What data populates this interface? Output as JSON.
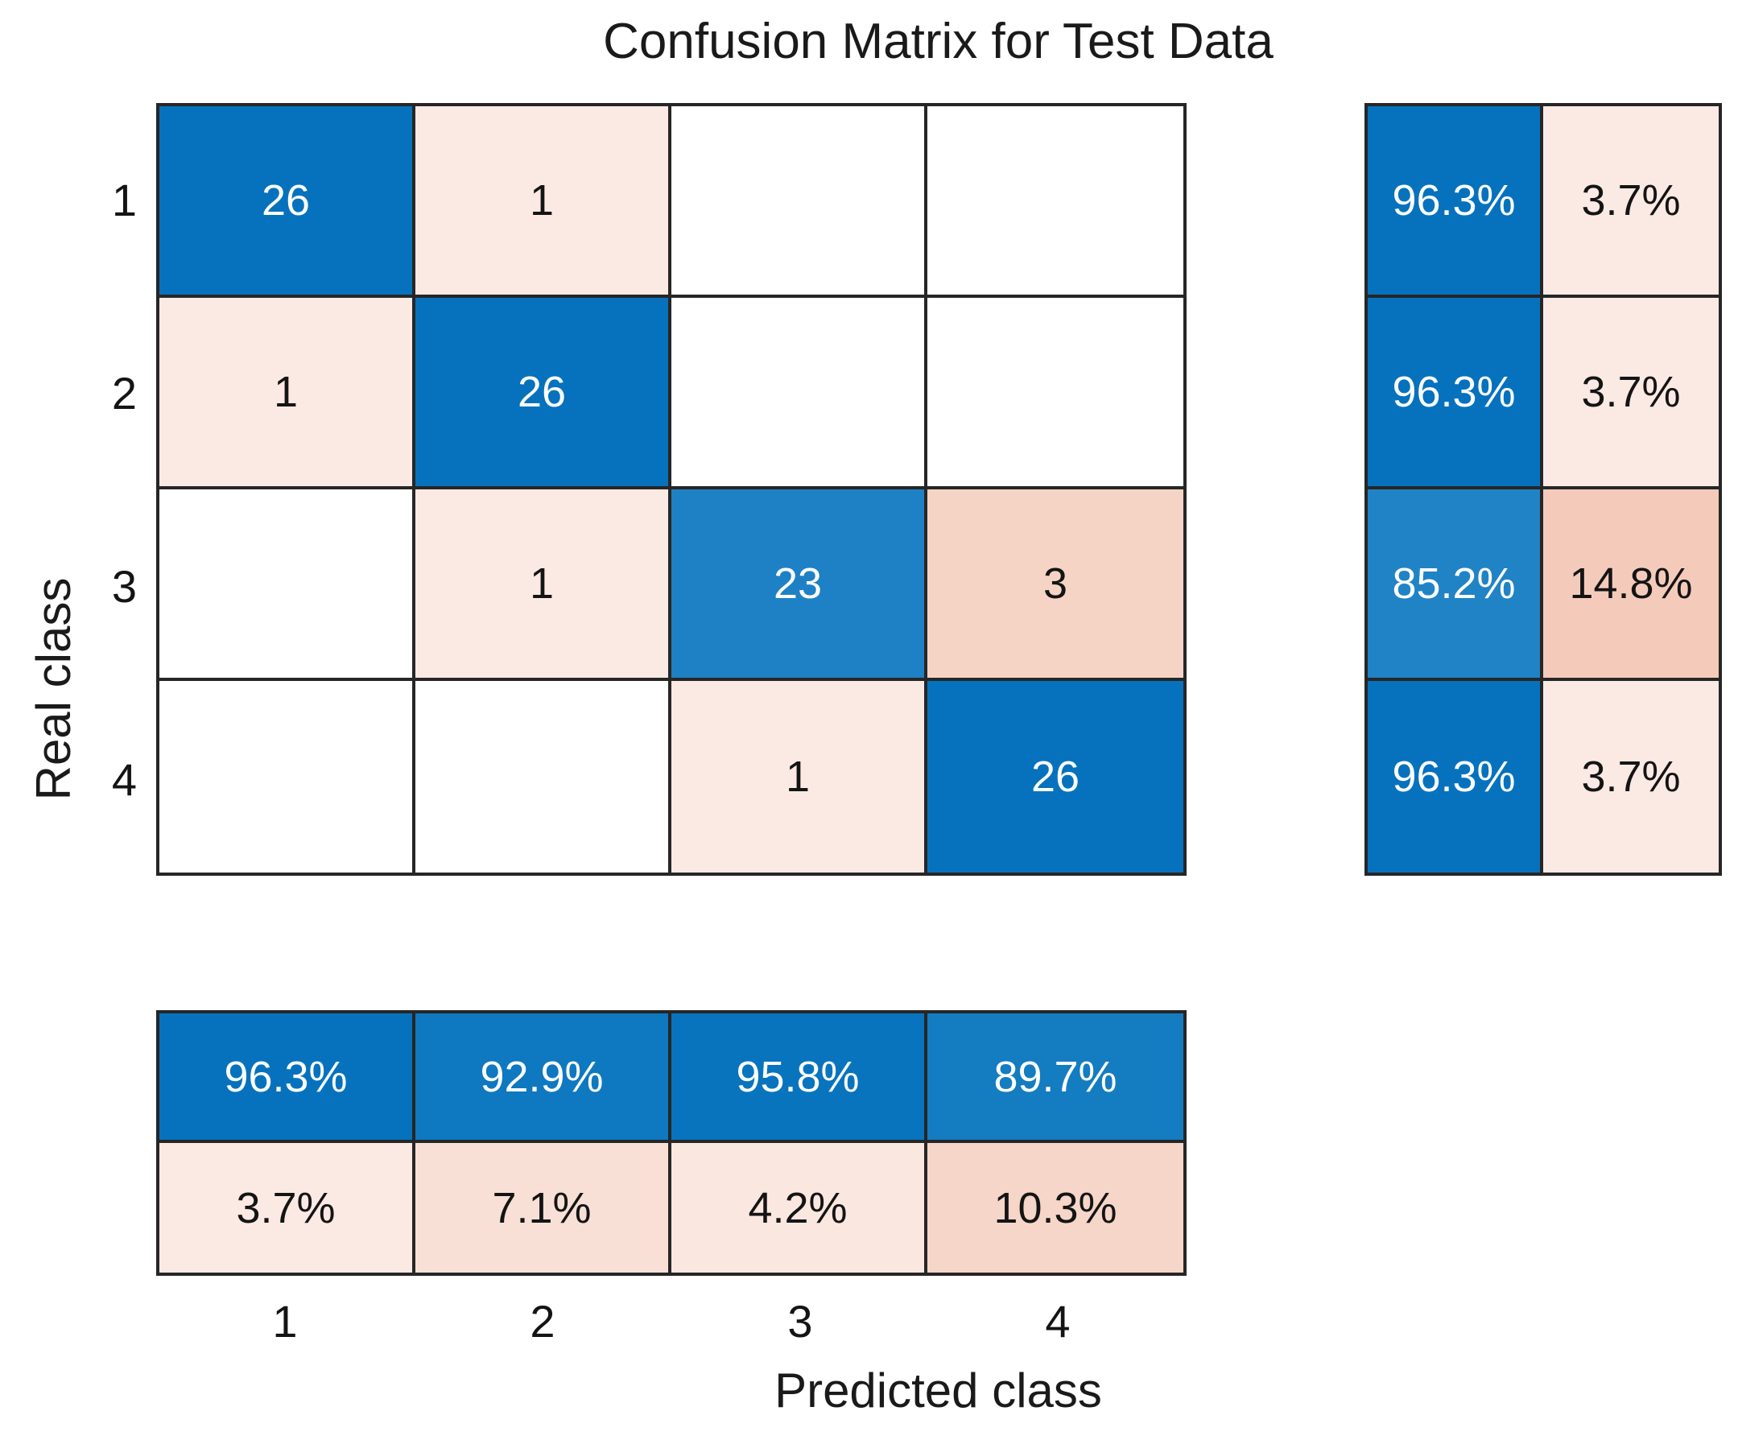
{
  "chart_data": {
    "type": "heatmap",
    "title": "Confusion Matrix for Test Data",
    "xlabel": "Predicted class",
    "ylabel": "Real class",
    "classes": [
      "1",
      "2",
      "3",
      "4"
    ],
    "matrix": [
      [
        26,
        1,
        null,
        null
      ],
      [
        1,
        26,
        null,
        null
      ],
      [
        null,
        1,
        23,
        3
      ],
      [
        null,
        null,
        1,
        26
      ]
    ],
    "matrix_colors": [
      [
        "#0672bd",
        "#fbeae3",
        "#ffffff",
        "#ffffff"
      ],
      [
        "#fbeae3",
        "#0672bd",
        "#ffffff",
        "#ffffff"
      ],
      [
        "#ffffff",
        "#fbeae3",
        "#1e81c5",
        "#f6d4c5"
      ],
      [
        "#ffffff",
        "#ffffff",
        "#fbeae3",
        "#0672bd"
      ]
    ],
    "row_summary_values": [
      [
        "96.3%",
        "3.7%"
      ],
      [
        "96.3%",
        "3.7%"
      ],
      [
        "85.2%",
        "14.8%"
      ],
      [
        "96.3%",
        "3.7%"
      ]
    ],
    "row_summary_colors": [
      [
        "#0672bd",
        "#fbeae3"
      ],
      [
        "#0672bd",
        "#fbeae3"
      ],
      [
        "#2083c6",
        "#f4cbba"
      ],
      [
        "#0672bd",
        "#fbeae3"
      ]
    ],
    "col_summary_values": [
      [
        "96.3%",
        "92.9%",
        "95.8%",
        "89.7%"
      ],
      [
        "3.7%",
        "7.1%",
        "4.2%",
        "10.3%"
      ]
    ],
    "col_summary_colors": [
      [
        "#0672bd",
        "#0e78c0",
        "#0874be",
        "#147cc1"
      ],
      [
        "#fbeae3",
        "#f8e0d6",
        "#fae8e0",
        "#f6d6c8"
      ]
    ],
    "layout": {
      "grid_on": true,
      "legend": "none",
      "diagonal_color": "#0672bd",
      "off_diagonal_color": "#d95319",
      "grid_line_color": "#262626",
      "text_on_blue": "#ffffff",
      "text_on_light": "#141414"
    }
  }
}
